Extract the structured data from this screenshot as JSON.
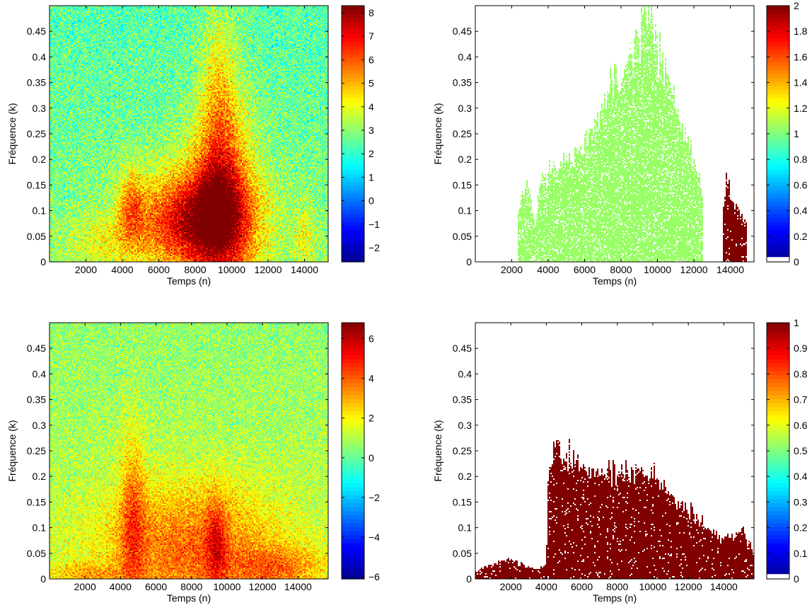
{
  "colors": {
    "jet_stops": [
      "#00008f",
      "#0000ff",
      "#007fff",
      "#00ffff",
      "#7fff7f",
      "#ffff00",
      "#ff7f00",
      "#ff0000",
      "#7f0000"
    ],
    "background": "#ffffff",
    "green_region": "#99ff66",
    "dark_red_region": "#800000"
  },
  "chart_data": [
    {
      "type": "heatmap",
      "position": "top-left",
      "title": "",
      "xlabel": "Temps (n)",
      "ylabel": "Fréquence (k)",
      "xlim": [
        0,
        15300
      ],
      "ylim": [
        0,
        0.5
      ],
      "xticks": [
        2000,
        4000,
        6000,
        8000,
        10000,
        12000,
        14000
      ],
      "yticks": [
        0,
        0.05,
        0.1,
        0.15,
        0.2,
        0.25,
        0.3,
        0.35,
        0.4,
        0.45
      ],
      "xtick_labels": [
        "2000",
        "4000",
        "6000",
        "8000",
        "10000",
        "12000",
        "14000"
      ],
      "ytick_labels": [
        "0",
        "0.05",
        "0.1",
        "0.15",
        "0.2",
        "0.25",
        "0.3",
        "0.35",
        "0.4",
        "0.45"
      ],
      "colorbar": {
        "min": -2.6,
        "max": 8.3,
        "ticks": [
          -2,
          -1,
          0,
          1,
          2,
          3,
          4,
          5,
          6,
          7,
          8
        ],
        "tick_labels": [
          "−2",
          "−1",
          "0",
          "1",
          "2",
          "3",
          "4",
          "5",
          "6",
          "7",
          "8"
        ]
      },
      "background_level": 3,
      "blobs": [
        {
          "x": 8000,
          "y": 0.08,
          "sx": 2200,
          "sy": 0.07,
          "amp": 4.6
        },
        {
          "x": 9500,
          "y": 0.12,
          "sx": 1200,
          "sy": 0.14,
          "amp": 3.0
        },
        {
          "x": 9300,
          "y": 0.3,
          "sx": 700,
          "sy": 0.15,
          "amp": 1.6
        },
        {
          "x": 4500,
          "y": 0.11,
          "sx": 500,
          "sy": 0.05,
          "amp": 2.0
        },
        {
          "x": 14000,
          "y": 0.05,
          "sx": 400,
          "sy": 0.04,
          "amp": 1.3
        },
        {
          "x": 3000,
          "y": 0.04,
          "sx": 1500,
          "sy": 0.04,
          "amp": 1.0
        }
      ]
    },
    {
      "type": "heatmap",
      "position": "top-right",
      "title": "",
      "xlabel": "Temps (n)",
      "ylabel": "Fréquence (k)",
      "xlim": [
        0,
        15300
      ],
      "ylim": [
        0,
        0.5
      ],
      "xticks": [
        2000,
        4000,
        6000,
        8000,
        10000,
        12000,
        14000
      ],
      "yticks": [
        0,
        0.05,
        0.1,
        0.15,
        0.2,
        0.25,
        0.3,
        0.35,
        0.4,
        0.45
      ],
      "xtick_labels": [
        "2000",
        "4000",
        "6000",
        "8000",
        "10000",
        "12000",
        "14000"
      ],
      "ytick_labels": [
        "0",
        "0.05",
        "0.1",
        "0.15",
        "0.2",
        "0.25",
        "0.3",
        "0.35",
        "0.4",
        "0.45"
      ],
      "colorbar": {
        "min": 0,
        "max": 2,
        "ticks": [
          0,
          0.2,
          0.4,
          0.6,
          0.8,
          1,
          1.2,
          1.4,
          1.6,
          1.8,
          2
        ],
        "tick_labels": [
          "0",
          "0.2",
          "0.4",
          "0.6",
          "0.8",
          "1",
          "1.2",
          "1.4",
          "1.6",
          "1.8",
          "2"
        ]
      },
      "regions": [
        {
          "label_value": 1,
          "color": "green_region",
          "x_range": [
            2300,
            12500
          ],
          "profile": [
            [
              2300,
              0.1
            ],
            [
              2800,
              0.16
            ],
            [
              3300,
              0.07
            ],
            [
              3600,
              0.16
            ],
            [
              4000,
              0.18
            ],
            [
              5000,
              0.2
            ],
            [
              6000,
              0.23
            ],
            [
              7000,
              0.3
            ],
            [
              7500,
              0.35
            ],
            [
              8500,
              0.38
            ],
            [
              9000,
              0.45
            ],
            [
              9500,
              0.47
            ],
            [
              10000,
              0.42
            ],
            [
              10500,
              0.38
            ],
            [
              11000,
              0.32
            ],
            [
              11300,
              0.27
            ],
            [
              11800,
              0.22
            ],
            [
              12500,
              0.13
            ]
          ]
        },
        {
          "label_value": 2,
          "color": "dark_red_region",
          "x_range": [
            13600,
            14900
          ],
          "profile": [
            [
              13600,
              0.1
            ],
            [
              13800,
              0.16
            ],
            [
              14200,
              0.12
            ],
            [
              14500,
              0.1
            ],
            [
              14900,
              0.08
            ]
          ]
        }
      ]
    },
    {
      "type": "heatmap",
      "position": "bottom-left",
      "title": "",
      "xlabel": "Temps (n)",
      "ylabel": "Fréquence (k)",
      "xlim": [
        0,
        15700
      ],
      "ylim": [
        0,
        0.5
      ],
      "xticks": [
        2000,
        4000,
        6000,
        8000,
        10000,
        12000,
        14000
      ],
      "yticks": [
        0,
        0.05,
        0.1,
        0.15,
        0.2,
        0.25,
        0.3,
        0.35,
        0.4,
        0.45
      ],
      "xtick_labels": [
        "2000",
        "4000",
        "6000",
        "8000",
        "10000",
        "12000",
        "14000"
      ],
      "ytick_labels": [
        "0",
        "0.05",
        "0.1",
        "0.15",
        "0.2",
        "0.25",
        "0.3",
        "0.35",
        "0.4",
        "0.45"
      ],
      "colorbar": {
        "min": -6.1,
        "max": 6.8,
        "ticks": [
          -6,
          -4,
          -2,
          0,
          2,
          4,
          6
        ],
        "tick_labels": [
          "−6",
          "−4",
          "−2",
          "0",
          "2",
          "4",
          "6"
        ]
      },
      "background_level": 1.2,
      "blobs": [
        {
          "x": 8000,
          "y": 0.06,
          "sx": 3500,
          "sy": 0.09,
          "amp": 2.8
        },
        {
          "x": 4700,
          "y": 0.12,
          "sx": 500,
          "sy": 0.12,
          "amp": 2.2
        },
        {
          "x": 9400,
          "y": 0.07,
          "sx": 400,
          "sy": 0.06,
          "amp": 2.2
        },
        {
          "x": 13000,
          "y": 0.02,
          "sx": 1800,
          "sy": 0.03,
          "amp": 2.0
        },
        {
          "x": 2000,
          "y": 0.01,
          "sx": 1500,
          "sy": 0.015,
          "amp": 1.5
        }
      ]
    },
    {
      "type": "heatmap",
      "position": "bottom-right",
      "title": "",
      "xlabel": "Temps (n)",
      "ylabel": "Fréquence (k)",
      "xlim": [
        0,
        15700
      ],
      "ylim": [
        0,
        0.5
      ],
      "xticks": [
        2000,
        4000,
        6000,
        8000,
        10000,
        12000,
        14000
      ],
      "yticks": [
        0,
        0.05,
        0.1,
        0.15,
        0.2,
        0.25,
        0.3,
        0.35,
        0.4,
        0.45
      ],
      "xtick_labels": [
        "2000",
        "4000",
        "6000",
        "8000",
        "10000",
        "12000",
        "14000"
      ],
      "ytick_labels": [
        "0",
        "0.05",
        "0.1",
        "0.15",
        "0.2",
        "0.25",
        "0.3",
        "0.35",
        "0.4",
        "0.45"
      ],
      "colorbar": {
        "min": 0,
        "max": 1,
        "ticks": [
          0,
          0.1,
          0.2,
          0.3,
          0.4,
          0.5,
          0.6,
          0.7,
          0.8,
          0.9,
          1
        ],
        "tick_labels": [
          "0",
          "0.1",
          "0.2",
          "0.3",
          "0.4",
          "0.5",
          "0.6",
          "0.7",
          "0.8",
          "0.9",
          "1"
        ]
      },
      "regions": [
        {
          "label_value": 1,
          "color": "dark_red_region",
          "x_range": [
            0,
            15700
          ],
          "profile": [
            [
              0,
              0.015
            ],
            [
              1000,
              0.03
            ],
            [
              2000,
              0.04
            ],
            [
              2800,
              0.025
            ],
            [
              3500,
              0.02
            ],
            [
              4000,
              0.03
            ],
            [
              4100,
              0.18
            ],
            [
              4500,
              0.26
            ],
            [
              5000,
              0.24
            ],
            [
              5500,
              0.23
            ],
            [
              6500,
              0.2
            ],
            [
              7500,
              0.21
            ],
            [
              8500,
              0.22
            ],
            [
              9500,
              0.21
            ],
            [
              10500,
              0.19
            ],
            [
              11500,
              0.15
            ],
            [
              12500,
              0.12
            ],
            [
              13500,
              0.09
            ],
            [
              14500,
              0.08
            ],
            [
              15000,
              0.1
            ],
            [
              15700,
              0.05
            ]
          ]
        }
      ]
    }
  ]
}
